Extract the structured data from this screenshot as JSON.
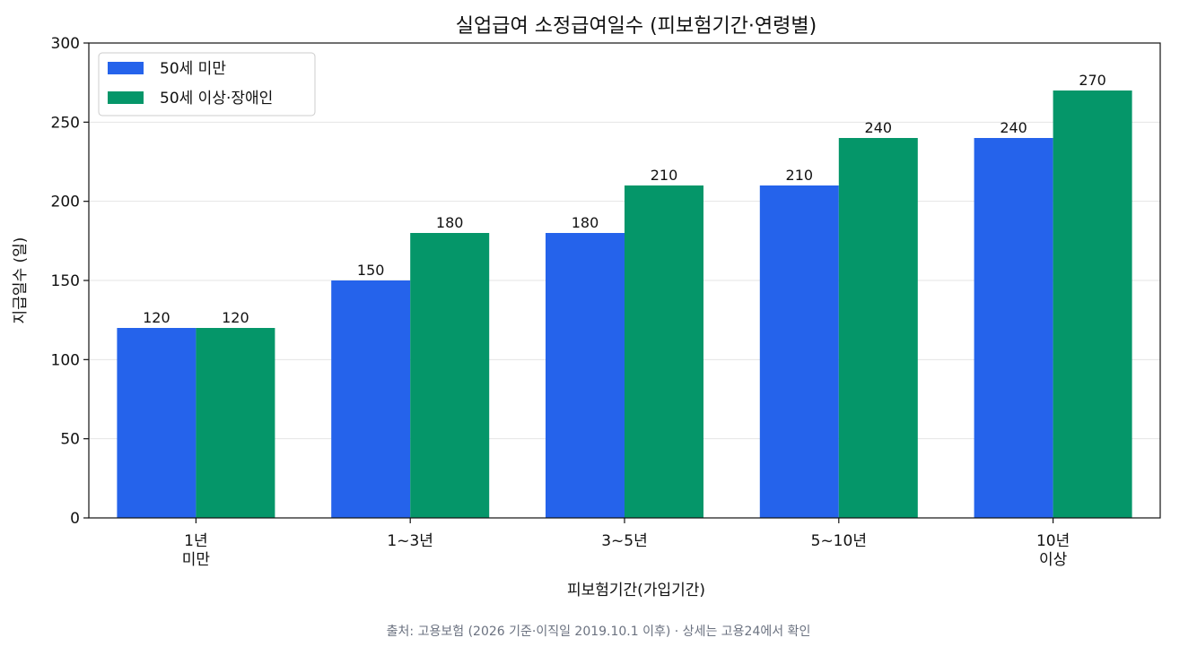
{
  "chart_data": {
    "type": "bar",
    "title": "실업급여 소정급여일수 (피보험기간·연령별)",
    "xlabel": "피보험기간(가입기간)",
    "ylabel": "지급일수 (일)",
    "categories": [
      [
        "1년",
        "미만"
      ],
      [
        "1~3년"
      ],
      [
        "3~5년"
      ],
      [
        "5~10년"
      ],
      [
        "10년",
        "이상"
      ]
    ],
    "series": [
      {
        "name": "50세 미만",
        "color": "#2563eb",
        "values": [
          120,
          150,
          180,
          210,
          240
        ]
      },
      {
        "name": "50세 이상·장애인",
        "color": "#059669",
        "values": [
          120,
          180,
          210,
          240,
          270
        ]
      }
    ],
    "ylim": [
      0,
      300
    ],
    "yticks": [
      0,
      50,
      100,
      150,
      200,
      250,
      300
    ],
    "grid": "y",
    "legend": "top-left",
    "data_labels": true
  },
  "source_note": "출처: 고용보험 (2026 기준·이직일 2019.10.1 이후) · 상세는 고용24에서 확인"
}
